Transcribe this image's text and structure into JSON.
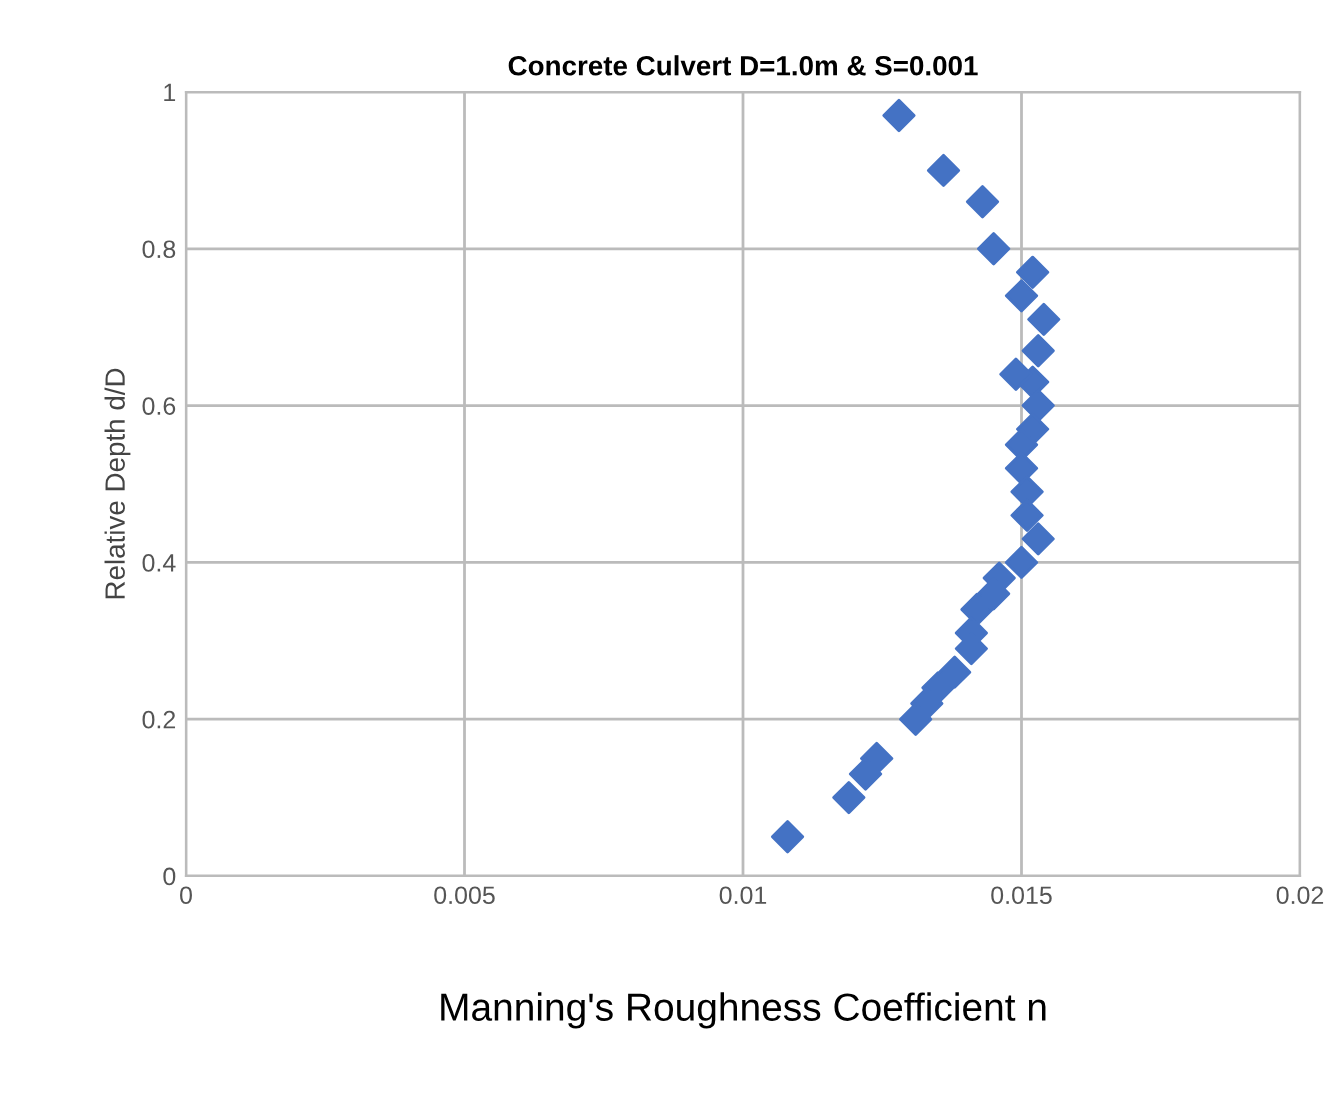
{
  "chart_data": {
    "type": "scatter",
    "title": "Concrete Culvert D=1.0m & S=0.001",
    "xlabel": "Manning's Roughness Coefficient n",
    "ylabel": "Relative Depth d/D",
    "x": [
      0.0128,
      0.0136,
      0.0143,
      0.0145,
      0.0152,
      0.015,
      0.0154,
      0.0153,
      0.0152,
      0.0149,
      0.0153,
      0.0152,
      0.015,
      0.015,
      0.0151,
      0.0151,
      0.0152,
      0.0153,
      0.015,
      0.0146,
      0.0145,
      0.0142,
      0.0141,
      0.0141,
      0.0138,
      0.0135,
      0.0133,
      0.0131,
      0.0124,
      0.0122,
      0.012,
      0.0119,
      0.0108
    ],
    "series": [
      {
        "color": "#4472c4",
        "values": [
          0.97,
          0.9,
          0.86,
          0.8,
          0.77,
          0.74,
          0.71,
          0.67,
          0.63,
          0.64,
          0.6,
          0.57,
          0.55,
          0.52,
          0.49,
          0.46,
          null,
          0.43,
          0.4,
          0.38,
          0.36,
          0.34,
          0.31,
          0.29,
          0.26,
          0.24,
          0.22,
          0.2,
          0.15,
          0.13,
          null,
          0.1,
          0.05
        ]
      }
    ],
    "xlim": [
      0,
      0.02
    ],
    "xticks": [
      0,
      0.005,
      0.01,
      0.015,
      0.02
    ],
    "ylim": [
      0,
      1
    ],
    "yticks": [
      0,
      0.2,
      0.4,
      0.6,
      0.8,
      1
    ],
    "grid": true,
    "marker": "diamond"
  }
}
